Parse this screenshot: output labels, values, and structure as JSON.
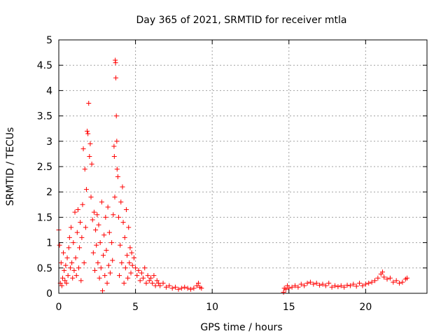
{
  "chart_data": {
    "type": "scatter",
    "title": "Day 365 of 2021, SRMTID for receiver mtla",
    "xlabel": "GPS time / hours",
    "ylabel": "SRMTID / TECUs",
    "xlim": [
      0,
      24
    ],
    "ylim": [
      0,
      5
    ],
    "x_ticks": [
      0,
      5,
      10,
      15,
      20
    ],
    "x_tick_labels": [
      "0",
      "5",
      "10",
      "15",
      "20"
    ],
    "y_ticks": [
      0,
      0.5,
      1,
      1.5,
      2,
      2.5,
      3,
      3.5,
      4,
      4.5,
      5
    ],
    "y_tick_labels": [
      "0",
      "0.5",
      "1",
      "1.5",
      "2",
      "2.5",
      "3",
      "3.5",
      "4",
      "4.5",
      "5"
    ],
    "grid": true,
    "marker": "+",
    "marker_color": "#ff0000",
    "series": [
      {
        "name": "SRMTID",
        "points": [
          [
            0.0,
            1.25
          ],
          [
            0.05,
            0.95
          ],
          [
            0.1,
            0.2
          ],
          [
            0.15,
            0.6
          ],
          [
            0.2,
            0.15
          ],
          [
            0.25,
            0.3
          ],
          [
            0.3,
            0.8
          ],
          [
            0.35,
            0.45
          ],
          [
            0.4,
            0.25
          ],
          [
            0.45,
            0.55
          ],
          [
            0.5,
            0.2
          ],
          [
            0.55,
            0.7
          ],
          [
            0.6,
            0.35
          ],
          [
            0.65,
            0.9
          ],
          [
            0.7,
            1.1
          ],
          [
            0.75,
            0.5
          ],
          [
            0.8,
            1.3
          ],
          [
            0.85,
            0.6
          ],
          [
            0.9,
            0.3
          ],
          [
            0.95,
            1.0
          ],
          [
            1.0,
            0.45
          ],
          [
            1.05,
            1.6
          ],
          [
            1.1,
            0.7
          ],
          [
            1.15,
            0.35
          ],
          [
            1.2,
            1.2
          ],
          [
            1.25,
            1.65
          ],
          [
            1.3,
            0.5
          ],
          [
            1.35,
            0.9
          ],
          [
            1.4,
            1.4
          ],
          [
            1.45,
            0.25
          ],
          [
            1.5,
            1.1
          ],
          [
            1.55,
            1.75
          ],
          [
            1.6,
            2.85
          ],
          [
            1.65,
            0.6
          ],
          [
            1.7,
            2.45
          ],
          [
            1.75,
            1.3
          ],
          [
            1.8,
            2.05
          ],
          [
            1.85,
            3.2
          ],
          [
            1.9,
            3.15
          ],
          [
            1.95,
            3.75
          ],
          [
            2.0,
            2.7
          ],
          [
            2.05,
            2.95
          ],
          [
            2.1,
            1.9
          ],
          [
            2.15,
            2.55
          ],
          [
            2.2,
            1.45
          ],
          [
            2.25,
            0.8
          ],
          [
            2.3,
            1.6
          ],
          [
            2.35,
            0.45
          ],
          [
            2.4,
            1.25
          ],
          [
            2.45,
            0.95
          ],
          [
            2.5,
            1.55
          ],
          [
            2.55,
            0.6
          ],
          [
            2.6,
            1.35
          ],
          [
            2.65,
            0.3
          ],
          [
            2.7,
            1.0
          ],
          [
            2.75,
            0.5
          ],
          [
            2.8,
            1.8
          ],
          [
            2.85,
            0.05
          ],
          [
            2.9,
            0.75
          ],
          [
            2.95,
            1.15
          ],
          [
            3.0,
            0.35
          ],
          [
            3.05,
            1.5
          ],
          [
            3.1,
            0.85
          ],
          [
            3.15,
            0.2
          ],
          [
            3.2,
            1.7
          ],
          [
            3.25,
            0.55
          ],
          [
            3.3,
            1.2
          ],
          [
            3.35,
            0.4
          ],
          [
            3.45,
            1.0
          ],
          [
            3.5,
            0.65
          ],
          [
            3.55,
            1.55
          ],
          [
            3.6,
            2.9
          ],
          [
            3.62,
            2.7
          ],
          [
            3.65,
            1.9
          ],
          [
            3.68,
            4.6
          ],
          [
            3.7,
            4.55
          ],
          [
            3.72,
            4.25
          ],
          [
            3.75,
            3.5
          ],
          [
            3.78,
            3.0
          ],
          [
            3.8,
            2.45
          ],
          [
            3.85,
            2.3
          ],
          [
            3.9,
            1.5
          ],
          [
            3.95,
            0.35
          ],
          [
            4.0,
            0.95
          ],
          [
            4.05,
            1.8
          ],
          [
            4.1,
            0.6
          ],
          [
            4.15,
            2.1
          ],
          [
            4.2,
            1.4
          ],
          [
            4.25,
            0.2
          ],
          [
            4.3,
            1.1
          ],
          [
            4.35,
            0.5
          ],
          [
            4.4,
            1.65
          ],
          [
            4.45,
            0.75
          ],
          [
            4.5,
            0.3
          ],
          [
            4.55,
            1.3
          ],
          [
            4.6,
            0.6
          ],
          [
            4.65,
            0.9
          ],
          [
            4.7,
            0.4
          ],
          [
            4.75,
            0.8
          ],
          [
            4.8,
            0.55
          ],
          [
            4.9,
            0.7
          ],
          [
            5.0,
            0.5
          ],
          [
            5.1,
            0.35
          ],
          [
            5.2,
            0.45
          ],
          [
            5.3,
            0.25
          ],
          [
            5.4,
            0.4
          ],
          [
            5.5,
            0.3
          ],
          [
            5.6,
            0.5
          ],
          [
            5.7,
            0.2
          ],
          [
            5.8,
            0.35
          ],
          [
            5.9,
            0.25
          ],
          [
            6.0,
            0.3
          ],
          [
            6.1,
            0.2
          ],
          [
            6.2,
            0.35
          ],
          [
            6.3,
            0.15
          ],
          [
            6.4,
            0.25
          ],
          [
            6.5,
            0.2
          ],
          [
            6.6,
            0.15
          ],
          [
            6.8,
            0.2
          ],
          [
            7.0,
            0.12
          ],
          [
            7.2,
            0.15
          ],
          [
            7.4,
            0.1
          ],
          [
            7.6,
            0.12
          ],
          [
            7.8,
            0.08
          ],
          [
            8.0,
            0.1
          ],
          [
            8.2,
            0.12
          ],
          [
            8.4,
            0.1
          ],
          [
            8.6,
            0.08
          ],
          [
            8.8,
            0.1
          ],
          [
            9.0,
            0.15
          ],
          [
            9.1,
            0.2
          ],
          [
            9.2,
            0.12
          ],
          [
            9.3,
            0.1
          ],
          [
            14.65,
            0.02
          ],
          [
            14.7,
            0.1
          ],
          [
            14.8,
            0.08
          ],
          [
            14.9,
            0.15
          ],
          [
            15.0,
            0.1
          ],
          [
            15.2,
            0.12
          ],
          [
            15.4,
            0.15
          ],
          [
            15.6,
            0.12
          ],
          [
            15.8,
            0.18
          ],
          [
            16.0,
            0.15
          ],
          [
            16.2,
            0.2
          ],
          [
            16.4,
            0.22
          ],
          [
            16.6,
            0.18
          ],
          [
            16.8,
            0.2
          ],
          [
            17.0,
            0.16
          ],
          [
            17.2,
            0.18
          ],
          [
            17.4,
            0.15
          ],
          [
            17.6,
            0.2
          ],
          [
            17.8,
            0.12
          ],
          [
            18.0,
            0.15
          ],
          [
            18.2,
            0.13
          ],
          [
            18.4,
            0.15
          ],
          [
            18.6,
            0.12
          ],
          [
            18.8,
            0.16
          ],
          [
            19.0,
            0.15
          ],
          [
            19.2,
            0.18
          ],
          [
            19.4,
            0.14
          ],
          [
            19.6,
            0.2
          ],
          [
            19.8,
            0.15
          ],
          [
            20.0,
            0.18
          ],
          [
            20.2,
            0.2
          ],
          [
            20.4,
            0.22
          ],
          [
            20.6,
            0.25
          ],
          [
            20.8,
            0.3
          ],
          [
            21.0,
            0.38
          ],
          [
            21.1,
            0.42
          ],
          [
            21.2,
            0.32
          ],
          [
            21.4,
            0.28
          ],
          [
            21.6,
            0.3
          ],
          [
            21.8,
            0.22
          ],
          [
            22.0,
            0.25
          ],
          [
            22.2,
            0.2
          ],
          [
            22.4,
            0.22
          ],
          [
            22.6,
            0.28
          ],
          [
            22.7,
            0.3
          ]
        ]
      }
    ]
  }
}
